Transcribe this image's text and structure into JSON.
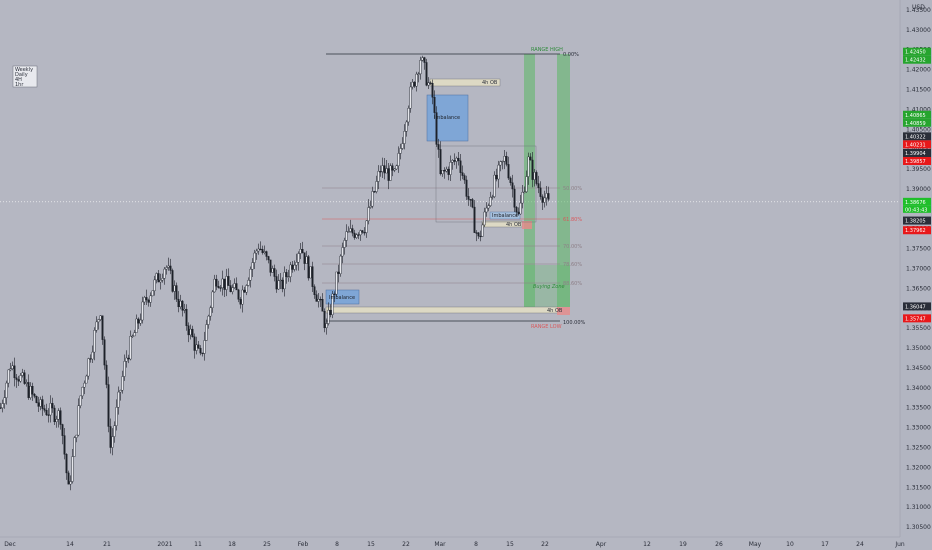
{
  "chart_data": {
    "type": "candlestick",
    "currency": "USD",
    "x_ticks": [
      "Dec",
      "14",
      "21",
      "2021",
      "11",
      "18",
      "25",
      "Feb",
      "8",
      "15",
      "22",
      "Mar",
      "8",
      "15",
      "22",
      "Apr",
      "12",
      "19",
      "26",
      "May",
      "10",
      "17",
      "24",
      "Jun"
    ],
    "y_ticks": [
      "1.43500",
      "1.43000",
      "1.42500",
      "1.42000",
      "1.41500",
      "1.41000",
      "1.40500",
      "1.40000",
      "1.39500",
      "1.39000",
      "1.38500",
      "1.38000",
      "1.37500",
      "1.37000",
      "1.36500",
      "1.36000",
      "1.35500",
      "1.35000",
      "1.34500",
      "1.34000",
      "1.33500",
      "1.33000",
      "1.32500",
      "1.32000",
      "1.31500",
      "1.31000",
      "1.30500"
    ],
    "ylim": [
      1.3025,
      1.4375
    ],
    "price_tags": [
      {
        "value": 1.4245,
        "label": "1.42450",
        "color": "#26a52e"
      },
      {
        "value": 1.42432,
        "label": "1.42432",
        "color": "#26a52e"
      },
      {
        "value": 1.40865,
        "label": "1.40865",
        "color": "#26a52e"
      },
      {
        "value": 1.40859,
        "label": "1.40859",
        "color": "#26a52e"
      },
      {
        "value": 1.40322,
        "label": "1.40322",
        "color": "#2a2e39"
      },
      {
        "value": 1.40231,
        "label": "1.40231",
        "color": "#e8181a"
      },
      {
        "value": 1.39904,
        "label": "1.39904",
        "color": "#2a2e39"
      },
      {
        "value": 1.39857,
        "label": "1.39857",
        "color": "#e8181a"
      },
      {
        "value": 1.38676,
        "label": "1.38676",
        "color": "#1fbf2a"
      },
      {
        "value": 1.38205,
        "label": "1.38205",
        "color": "#2a2e39"
      },
      {
        "value": 1.37962,
        "label": "1.37962",
        "color": "#e8181a"
      },
      {
        "value": 1.36047,
        "label": "1.36047",
        "color": "#2a2e39"
      },
      {
        "value": 1.35747,
        "label": "1.35747",
        "color": "#e8181a"
      }
    ],
    "countdown": "00:43:43",
    "annotations": {
      "range_high": "RANGE HIGH",
      "range_low": "RANGE LOW",
      "pct_top": "0.00%",
      "pct_bottom": "100.00%",
      "ob_top": "4h OB",
      "ob_mid": "4h OB",
      "ob_bottom": "4h OB",
      "imbalance_top": "Imbalance",
      "imbalance_mid": "Imbalance",
      "imbalance_bottom": "Imbalance",
      "buying_zone": "Buying Zone",
      "fib_levels": [
        "50.00%",
        "61.80%",
        "70.00%",
        "78.60%",
        "88.60%"
      ]
    },
    "legend_items": [
      "Weekly",
      "Daily",
      "4H",
      "1hr"
    ]
  }
}
